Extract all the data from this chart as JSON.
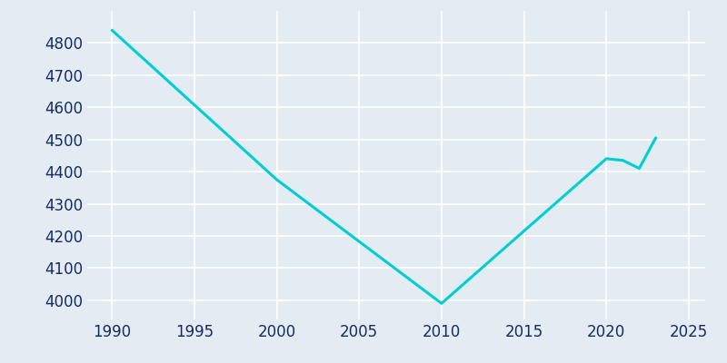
{
  "years": [
    1990,
    2000,
    2010,
    2020,
    2021,
    2022,
    2023
  ],
  "population": [
    4840,
    4375,
    3990,
    4440,
    4435,
    4410,
    4505
  ],
  "line_color": "#00CED1",
  "background_color": "#E3EBF3",
  "grid_color": "#FFFFFF",
  "text_color": "#1a2a5e",
  "xlim": [
    1988.5,
    2026
  ],
  "ylim": [
    3940,
    4900
  ],
  "xticks": [
    1990,
    1995,
    2000,
    2005,
    2010,
    2015,
    2020,
    2025
  ],
  "yticks": [
    4000,
    4100,
    4200,
    4300,
    4400,
    4500,
    4600,
    4700,
    4800
  ],
  "line_width": 2.2,
  "figsize": [
    8.0,
    4.0
  ],
  "dpi": 100,
  "tick_labelsize": 12
}
